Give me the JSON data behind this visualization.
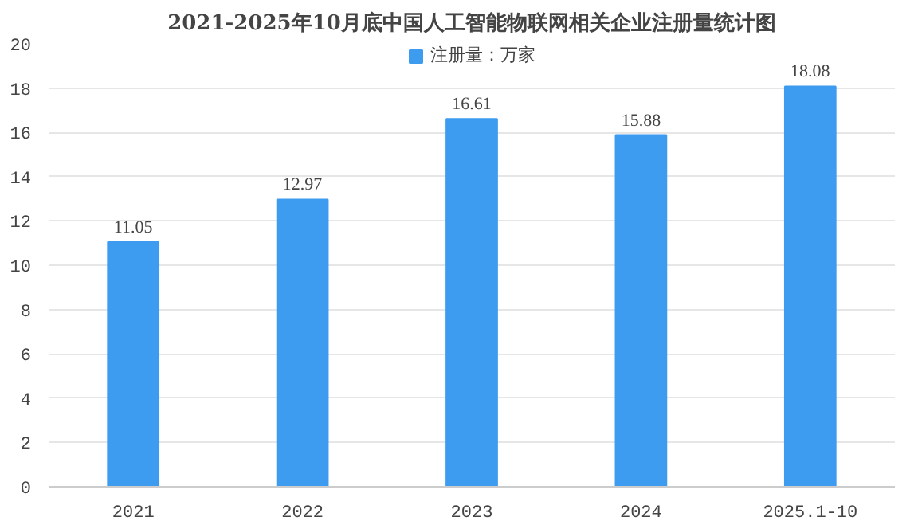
{
  "chart_data": {
    "type": "bar",
    "title": "2021-2025年10月底中国人工智能物联网相关企业注册量统计图",
    "categories": [
      "2021",
      "2022",
      "2023",
      "2024",
      "2025.1-10"
    ],
    "series": [
      {
        "name": "注册量：万家",
        "color": "#3d9bf0",
        "values": [
          11.05,
          12.97,
          16.61,
          15.88,
          18.08
        ]
      }
    ],
    "ylim": [
      0,
      20
    ],
    "yticks": [
      0,
      2,
      4,
      6,
      8,
      10,
      12,
      14,
      16,
      18,
      20
    ],
    "grid": "y",
    "legend": "top",
    "data_labels": true
  }
}
